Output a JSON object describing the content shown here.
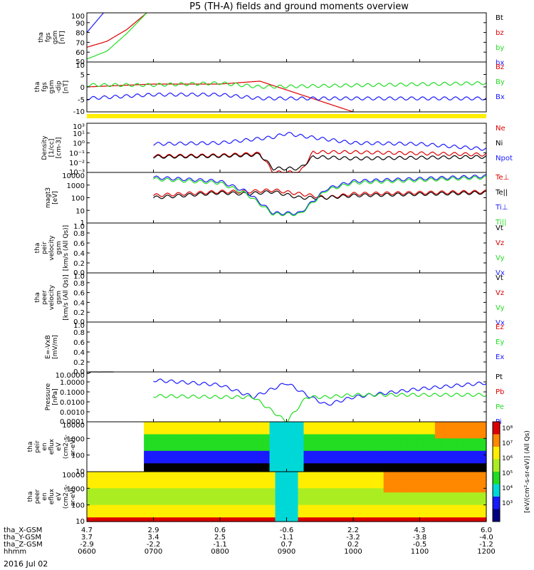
{
  "title": "P5 (TH-A) fields and ground moments overview",
  "date": "2016 Jul 02",
  "colors": {
    "black": "#000000",
    "red": "#dd0000",
    "green": "#22dd22",
    "blue": "#1a1aff",
    "yellow": "#ffee00",
    "cyan": "#00d8d8",
    "orange": "#ff8800"
  },
  "panels": [
    {
      "id": "fgs_gsm",
      "ylabel": [
        "tha",
        "fgs",
        "gsm",
        "[nT]"
      ],
      "yticks": [
        "100",
        "90",
        "80",
        "70",
        "60",
        "50"
      ],
      "legend": [
        {
          "t": "Bt",
          "c": "#000000"
        },
        {
          "t": "bz",
          "c": "#dd0000"
        },
        {
          "t": "by",
          "c": "#22dd22"
        },
        {
          "t": "bx",
          "c": "#1a1aff"
        }
      ]
    },
    {
      "id": "fgs_dsl",
      "ylabel": [
        "tha",
        "fgs",
        "gsm",
        "-dip",
        "[nT]"
      ],
      "yticks": [
        "10",
        "5",
        "0",
        "-5",
        "-10"
      ],
      "legend": [
        {
          "t": "Bz",
          "c": "#dd0000"
        },
        {
          "t": "By",
          "c": "#22dd22"
        },
        {
          "t": "Bx",
          "c": "#1a1aff"
        }
      ]
    },
    {
      "id": "density",
      "ylabel": [
        "Density",
        "[1/cc]",
        "[cm-3]"
      ],
      "yticks": [
        "10³",
        "10¹",
        "10⁰",
        "10⁻¹",
        "10⁻²",
        "10⁻³"
      ],
      "legend": [
        {
          "t": "Ne",
          "c": "#dd0000"
        },
        {
          "t": "Ni",
          "c": "#000000"
        },
        {
          "t": "Npot",
          "c": "#1a1aff"
        }
      ]
    },
    {
      "id": "temperature",
      "ylabel": [
        "magt3",
        "[eV]"
      ],
      "yticks": [
        "10000",
        "1000",
        "100",
        "10",
        "1"
      ],
      "legend": [
        {
          "t": "Te⊥",
          "c": "#dd0000"
        },
        {
          "t": "Te||",
          "c": "#000000"
        },
        {
          "t": "Ti⊥",
          "c": "#1a1aff"
        },
        {
          "t": "Ti||",
          "c": "#22dd22"
        }
      ]
    },
    {
      "id": "peir_velocity",
      "ylabel": [
        "tha",
        "peir",
        "velocity",
        "gsm",
        "[km/s (All Qs)]"
      ],
      "yticks": [
        "1.0",
        "0.8",
        "0.6",
        "0.4",
        "0.2",
        "0.0"
      ],
      "legend": [
        {
          "t": "Vt",
          "c": "#000000"
        },
        {
          "t": "Vz",
          "c": "#dd0000"
        },
        {
          "t": "Vy",
          "c": "#22dd22"
        },
        {
          "t": "Vx",
          "c": "#1a1aff"
        }
      ]
    },
    {
      "id": "peer_velocity",
      "ylabel": [
        "tha",
        "peer",
        "velocity",
        "gsm",
        "[km/s (All Qs)]"
      ],
      "yticks": [
        "1.0",
        "0.8",
        "0.6",
        "0.4",
        "0.2",
        "0.0"
      ],
      "legend": [
        {
          "t": "Vt",
          "c": "#000000"
        },
        {
          "t": "Vz",
          "c": "#dd0000"
        },
        {
          "t": "Vy",
          "c": "#22dd22"
        },
        {
          "t": "Vx",
          "c": "#1a1aff"
        }
      ]
    },
    {
      "id": "efield",
      "ylabel": [
        "E=-VxB",
        "[mV/m]"
      ],
      "yticks": [
        "1.0",
        "0.8",
        "0.6",
        "0.4",
        "0.2",
        "0.0"
      ],
      "legend": [
        {
          "t": "Ez",
          "c": "#dd0000"
        },
        {
          "t": "Ey",
          "c": "#22dd22"
        },
        {
          "t": "Ex",
          "c": "#1a1aff"
        }
      ]
    },
    {
      "id": "pressure",
      "ylabel": [
        "Pressure",
        "[nPa]"
      ],
      "yticks": [
        "10.0000",
        "1.0000",
        "0.1000",
        "0.0100",
        "0.0010",
        "0.0001"
      ],
      "legend": [
        {
          "t": "Pt",
          "c": "#000000"
        },
        {
          "t": "Pb",
          "c": "#dd0000"
        },
        {
          "t": "Pe",
          "c": "#22dd22"
        },
        {
          "t": "Pi",
          "c": "#1a1aff"
        }
      ]
    },
    {
      "id": "peir_eflux",
      "ylabel": [
        "tha",
        "peir",
        "en",
        "eflux",
        "eV",
        "(cm2-s-",
        "sr-eV)"
      ],
      "yticks": [
        "10000",
        "1000",
        "100",
        "10"
      ],
      "legend": []
    },
    {
      "id": "peer_eflux",
      "ylabel": [
        "tha",
        "peer",
        "en",
        "eflux",
        "eV",
        "(cm2-s-",
        "sr-eV)"
      ],
      "yticks": [
        "10000",
        "1000",
        "100",
        "10"
      ],
      "legend": []
    }
  ],
  "colorbar": {
    "ticks": [
      "10⁸",
      "10⁷",
      "10⁶",
      "10⁵",
      "10⁴",
      "10³"
    ],
    "label": "[eV/(cm²-s-sr-eV)] (All Qs)"
  },
  "orbit": {
    "rows": [
      {
        "label": "tha_X-GSM",
        "values": [
          "4.7",
          "2.9",
          "0.6",
          "-0.6",
          "2.2",
          "4.3",
          "6.0"
        ]
      },
      {
        "label": "tha_Y-GSM",
        "values": [
          "3.7",
          "3.4",
          "2.5",
          "-1.1",
          "-3.2",
          "-3.8",
          "-4.0"
        ]
      },
      {
        "label": "tha_Z-GSM",
        "values": [
          "-2.9",
          "-2.2",
          "-1.1",
          "0.7",
          "0.2",
          "-0.5",
          "-1.2"
        ]
      },
      {
        "label": "hhmm",
        "values": [
          "0600",
          "0700",
          "0800",
          "0900",
          "1000",
          "1100",
          "1200"
        ]
      }
    ]
  },
  "chart_data": {
    "type": "line",
    "title": "P5 (TH-A) fields and ground moments overview",
    "x": [
      "0600",
      "0700",
      "0800",
      "0900",
      "1000",
      "1100",
      "1200"
    ],
    "xlabel": "hhmm",
    "date": "2016 Jul 02",
    "panels": [
      {
        "ylabel": "tha fgs gsm [nT]",
        "ylim": [
          50,
          100
        ],
        "series": [
          {
            "name": "bz",
            "t": [
              0.0,
              0.3,
              0.6,
              0.9
            ],
            "values": [
              65,
              71,
              83,
              100
            ]
          },
          {
            "name": "by",
            "t": [
              0.0,
              0.3,
              0.6,
              0.9
            ],
            "values": [
              53,
              61,
              79,
              100
            ]
          },
          {
            "name": "bx",
            "t": [
              0.0,
              0.1,
              0.25
            ],
            "values": [
              80,
              88,
              100
            ]
          }
        ]
      },
      {
        "ylabel": "tha fgs gsm-dip [nT]",
        "ylim": [
          -13,
          13
        ],
        "series": [
          {
            "name": "Bz",
            "t": [
              0.0,
              1.0,
              2.0,
              2.6,
              4.0
            ],
            "values": [
              0,
              1.5,
              1.5,
              3,
              -13
            ]
          },
          {
            "name": "By",
            "t": [
              0.0,
              1.0,
              2.0,
              2.6,
              6.0
            ],
            "values": [
              1,
              1,
              2,
              0,
              2
            ]
          },
          {
            "name": "Bx",
            "t": [
              0.0,
              1.0,
              2.0,
              2.6,
              6.0
            ],
            "values": [
              -6,
              -4,
              -4,
              -6,
              -6
            ]
          }
        ]
      },
      {
        "ylabel": "Density [1/cc]",
        "ylim": [
          0.001,
          1000
        ],
        "log": true,
        "series": [
          {
            "name": "Ne",
            "t": [
              1.0,
              2.0,
              2.6,
              2.8,
              3.2,
              3.4,
              4.0,
              6.0
            ],
            "values": [
              0.1,
              0.12,
              0.2,
              0.001,
              0.001,
              0.3,
              0.3,
              0.15
            ]
          },
          {
            "name": "Ni",
            "t": [
              1.0,
              2.0,
              2.6,
              2.8,
              3.2,
              3.4,
              4.0,
              6.0
            ],
            "values": [
              0.08,
              0.1,
              0.15,
              0.003,
              0.003,
              0.08,
              0.05,
              0.08
            ]
          },
          {
            "name": "Npot",
            "t": [
              1.0,
              2.0,
              2.8,
              3.0,
              3.2,
              4.0,
              5.0,
              6.0
            ],
            "values": [
              3,
              4,
              20,
              60,
              30,
              4,
              3,
              0.7
            ]
          }
        ]
      },
      {
        "ylabel": "magt3 [eV]",
        "ylim": [
          1,
          10000
        ],
        "log": true,
        "series": [
          {
            "name": "Te⊥",
            "t": [
              1.0,
              2.0,
              2.4,
              2.8,
              3.2,
              3.6,
              4.0,
              6.0
            ],
            "values": [
              150,
              300,
              300,
              400,
              200,
              100,
              200,
              300
            ]
          },
          {
            "name": "Te||",
            "t": [
              1.0,
              2.0,
              2.4,
              2.8,
              3.2,
              3.6,
              4.0,
              6.0
            ],
            "values": [
              100,
              250,
              200,
              300,
              100,
              100,
              150,
              250
            ]
          },
          {
            "name": "Ti⊥",
            "t": [
              1.0,
              2.0,
              2.4,
              2.8,
              3.2,
              3.6,
              4.0,
              6.0
            ],
            "values": [
              4000,
              2000,
              300,
              6,
              6,
              500,
              2000,
              5000
            ]
          },
          {
            "name": "Ti||",
            "t": [
              1.0,
              2.0,
              2.4,
              2.8,
              3.2,
              3.6,
              4.0,
              6.0
            ],
            "values": [
              3000,
              1500,
              200,
              5,
              5,
              400,
              1500,
              4000
            ]
          }
        ]
      },
      {
        "ylabel": "tha peir velocity gsm [km/s (All Qs)]",
        "ylim": [
          0,
          1
        ],
        "series": []
      },
      {
        "ylabel": "tha peer velocity gsm [km/s (All Qs)]",
        "ylim": [
          0,
          1
        ],
        "series": []
      },
      {
        "ylabel": "E=-VxB [mV/m]",
        "ylim": [
          0,
          1
        ],
        "series": []
      },
      {
        "ylabel": "Pressure [nPa]",
        "ylim": [
          0.0001,
          10
        ],
        "log": true,
        "series": [
          {
            "name": "Pt",
            "t": [
              0.0,
              0.4
            ],
            "values": [
              10,
              20
            ]
          },
          {
            "name": "Pi",
            "t": [
              1.0,
              2.0,
              2.5,
              3.0,
              3.3,
              3.6,
              4.0,
              5.0,
              6.0
            ],
            "values": [
              1.5,
              0.5,
              0.03,
              0.8,
              0.05,
              0.005,
              0.03,
              0.2,
              0.8
            ]
          },
          {
            "name": "Pe",
            "t": [
              1.0,
              2.0,
              2.5,
              2.8,
              3.0,
              3.3,
              3.6,
              4.0,
              6.0
            ],
            "values": [
              0.04,
              0.03,
              0.03,
              0.001,
              0.0001,
              0.03,
              0.03,
              0.05,
              0.05
            ]
          }
        ]
      },
      {
        "ylabel": "tha peir en eflux eV/(cm2-s-sr-eV)",
        "type": "heatmap",
        "ylim": [
          5,
          30000
        ],
        "log": true
      },
      {
        "ylabel": "tha peer en eflux eV/(cm2-s-sr-eV)",
        "type": "heatmap",
        "ylim": [
          5,
          30000
        ],
        "log": true
      }
    ],
    "colorbar": {
      "label": "[eV/(cm²-s-sr-eV)] (All Qs)",
      "ticks": [
        "10⁸",
        "10⁷",
        "10⁶",
        "10⁵",
        "10⁴",
        "10³"
      ]
    }
  }
}
